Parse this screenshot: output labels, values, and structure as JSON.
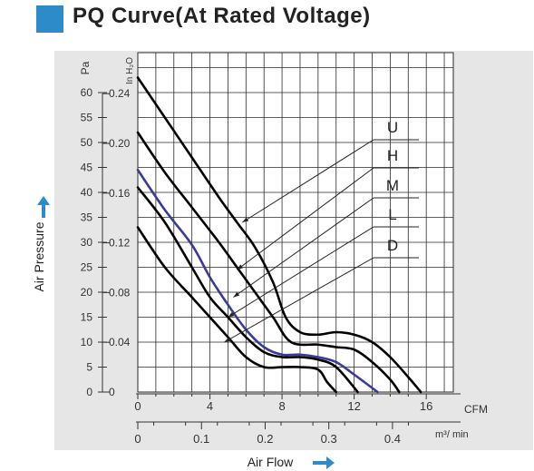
{
  "title": "PQ Curve(At Rated Voltage)",
  "colors": {
    "accent": "#2d8bc9",
    "panel": "#e6e6e6",
    "grid": "#2a2a2a",
    "curve": "#000000",
    "curve_M": "#3a3a9a"
  },
  "chart_data": {
    "type": "line",
    "title": "PQ Curve(At Rated Voltage)",
    "xlabel": "Air Flow",
    "ylabel": "Air Pressure",
    "x_unit_primary": "CFM",
    "x_unit_secondary": "m³/ min",
    "y_unit_primary": "Pa",
    "y_unit_secondary": "In H₂O",
    "xlim": [
      0,
      17.5
    ],
    "ylim": [
      0,
      68
    ],
    "x_ticks_primary": [
      "0",
      "4",
      "8",
      "12",
      "16"
    ],
    "x_ticks_secondary": [
      "0",
      "0.1",
      "0.2",
      "0.3",
      "0.4"
    ],
    "y_ticks_primary": [
      "0",
      "5",
      "10",
      "15",
      "20",
      "25",
      "30",
      "35",
      "40",
      "45",
      "50",
      "55",
      "60"
    ],
    "y_ticks_secondary": [
      "0",
      "0.04",
      "0.08",
      "0.12",
      "0.16",
      "0.20",
      "0.24"
    ],
    "grid": true,
    "series": [
      {
        "name": "U",
        "x": [
          0,
          1.5,
          3,
          4.5,
          5.5,
          6.5,
          7.5,
          8.2,
          9,
          10,
          11,
          12,
          13,
          14,
          15,
          15.7
        ],
        "y": [
          63,
          55,
          47,
          39,
          34,
          29,
          22,
          15,
          12,
          11.5,
          12,
          11.5,
          10,
          7,
          3,
          0
        ]
      },
      {
        "name": "H",
        "x": [
          0,
          1.5,
          3,
          4.5,
          5.5,
          6.5,
          7.5,
          8.5,
          10,
          11,
          12,
          13,
          14,
          14.5
        ],
        "y": [
          52,
          44,
          37,
          30,
          25,
          20,
          15,
          10,
          9.5,
          9,
          8.5,
          6,
          2.5,
          0
        ]
      },
      {
        "name": "M",
        "x": [
          0,
          1.5,
          3,
          4,
          5,
          6,
          7,
          8,
          9,
          10,
          11,
          12,
          13.3
        ],
        "y": [
          44.5,
          36.5,
          29.5,
          23,
          17.5,
          12.5,
          9,
          7.5,
          7.5,
          7,
          6,
          3.5,
          0
        ]
      },
      {
        "name": "L",
        "x": [
          0,
          1.5,
          3,
          4,
          5,
          6,
          7,
          8,
          9,
          10,
          11,
          12.2
        ],
        "y": [
          41,
          34,
          25,
          19,
          15,
          11,
          8,
          7,
          7,
          6.5,
          5,
          0
        ]
      },
      {
        "name": "D",
        "x": [
          0,
          1.5,
          3,
          4,
          5,
          6,
          7,
          8,
          9,
          10,
          10.5,
          11
        ],
        "y": [
          33,
          25,
          19,
          15,
          11,
          7,
          5,
          5,
          5,
          4.5,
          2,
          0
        ]
      }
    ],
    "legend": [
      "U",
      "H",
      "M",
      "L",
      "D"
    ],
    "legend_placement": "right"
  }
}
